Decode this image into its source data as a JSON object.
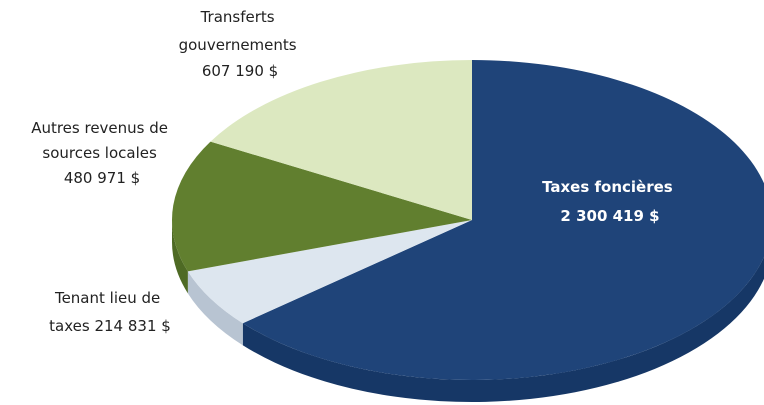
{
  "chart_data": {
    "type": "pie",
    "style": "3d",
    "title": "",
    "slices": [
      {
        "label_lines": [
          "Taxes foncières",
          "2 300 419 $"
        ],
        "value": 2300419,
        "color": "#1f4479",
        "side_color": "#163766"
      },
      {
        "label_lines": [
          "Tenant lieu de",
          "taxes  214 831 $"
        ],
        "value": 214831,
        "color": "#dde6ef",
        "side_color": "#b8c4d2"
      },
      {
        "label_lines": [
          "Autres revenus de",
          "sources locales",
          "480 971 $"
        ],
        "value": 480971,
        "color": "#617f2f",
        "side_color": "#4e6a24"
      },
      {
        "label_lines": [
          "Transferts",
          "gouvernements",
          "607 190 $"
        ],
        "value": 607190,
        "color": "#dce8c0",
        "side_color": "#bfcca4"
      }
    ]
  }
}
